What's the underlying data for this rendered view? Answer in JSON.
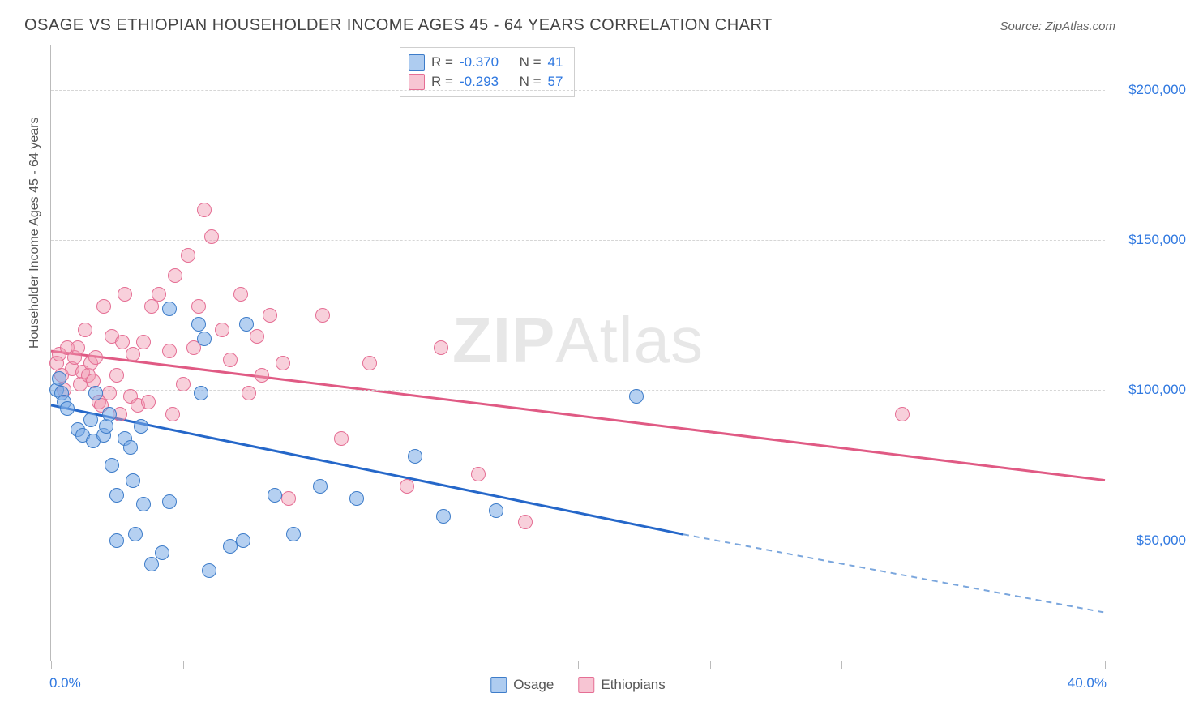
{
  "title": "OSAGE VS ETHIOPIAN HOUSEHOLDER INCOME AGES 45 - 64 YEARS CORRELATION CHART",
  "source": "Source: ZipAtlas.com",
  "yaxis_title": "Householder Income Ages 45 - 64 years",
  "watermark_zip": "ZIP",
  "watermark_atlas": "Atlas",
  "chart": {
    "type": "scatter",
    "xlim": [
      0,
      40
    ],
    "ylim": [
      10000,
      215000
    ],
    "xlabels": {
      "min": "0.0%",
      "max": "40.0%"
    },
    "xtick_positions": [
      0,
      5,
      10,
      15,
      20,
      25,
      30,
      35,
      40
    ],
    "yticks": [
      50000,
      100000,
      150000,
      200000
    ],
    "yticklabels": [
      "$50,000",
      "$100,000",
      "$150,000",
      "$200,000"
    ],
    "grid_color": "#d6d6d6",
    "axis_color": "#bbbbbb",
    "bg": "#ffffff",
    "tick_font_color": "#2f78e0",
    "tick_fontsize": 17,
    "marker_size": 18,
    "series": {
      "osage": {
        "label": "Osage",
        "color_fill": "rgba(120,170,230,0.55)",
        "color_stroke": "#3d7cc9",
        "R": "-0.370",
        "N": "41",
        "points": [
          [
            0.2,
            100000
          ],
          [
            0.3,
            104000
          ],
          [
            0.4,
            99000
          ],
          [
            0.5,
            96000
          ],
          [
            0.6,
            94000
          ],
          [
            1.0,
            87000
          ],
          [
            1.2,
            85000
          ],
          [
            1.5,
            90000
          ],
          [
            1.6,
            83000
          ],
          [
            1.7,
            99000
          ],
          [
            2.0,
            85000
          ],
          [
            2.1,
            88000
          ],
          [
            2.2,
            92000
          ],
          [
            2.3,
            75000
          ],
          [
            2.5,
            65000
          ],
          [
            2.5,
            50000
          ],
          [
            2.8,
            84000
          ],
          [
            3.0,
            81000
          ],
          [
            3.1,
            70000
          ],
          [
            3.2,
            52000
          ],
          [
            3.4,
            88000
          ],
          [
            3.5,
            62000
          ],
          [
            3.8,
            42000
          ],
          [
            4.2,
            46000
          ],
          [
            4.5,
            63000
          ],
          [
            4.5,
            127000
          ],
          [
            5.6,
            122000
          ],
          [
            5.7,
            99000
          ],
          [
            5.8,
            117000
          ],
          [
            6.0,
            40000
          ],
          [
            6.8,
            48000
          ],
          [
            7.3,
            50000
          ],
          [
            7.4,
            122000
          ],
          [
            8.5,
            65000
          ],
          [
            9.2,
            52000
          ],
          [
            10.2,
            68000
          ],
          [
            11.6,
            64000
          ],
          [
            13.8,
            78000
          ],
          [
            14.9,
            58000
          ],
          [
            16.9,
            60000
          ],
          [
            22.2,
            98000
          ]
        ],
        "trend": {
          "x1": 0,
          "y1": 95000,
          "x2": 24,
          "y2": 52000,
          "x2ext": 40,
          "y2ext": 26000,
          "solid_color": "#2567c9",
          "dash_color": "#7aa6dd",
          "width": 3
        }
      },
      "ethiopian": {
        "label": "Ethiopians",
        "color_fill": "rgba(240,150,175,0.45)",
        "color_stroke": "#e56e94",
        "R": "-0.293",
        "N": "57",
        "points": [
          [
            0.2,
            109000
          ],
          [
            0.3,
            112000
          ],
          [
            0.4,
            105000
          ],
          [
            0.5,
            100000
          ],
          [
            0.6,
            114000
          ],
          [
            0.8,
            107000
          ],
          [
            0.9,
            111000
          ],
          [
            1.0,
            114000
          ],
          [
            1.1,
            102000
          ],
          [
            1.2,
            106000
          ],
          [
            1.3,
            120000
          ],
          [
            1.4,
            105000
          ],
          [
            1.5,
            109000
          ],
          [
            1.6,
            103000
          ],
          [
            1.7,
            111000
          ],
          [
            1.8,
            96000
          ],
          [
            1.9,
            95000
          ],
          [
            2.0,
            128000
          ],
          [
            2.2,
            99000
          ],
          [
            2.3,
            118000
          ],
          [
            2.5,
            105000
          ],
          [
            2.6,
            92000
          ],
          [
            2.7,
            116000
          ],
          [
            2.8,
            132000
          ],
          [
            3.0,
            98000
          ],
          [
            3.1,
            112000
          ],
          [
            3.3,
            95000
          ],
          [
            3.5,
            116000
          ],
          [
            3.7,
            96000
          ],
          [
            3.8,
            128000
          ],
          [
            4.1,
            132000
          ],
          [
            4.5,
            113000
          ],
          [
            4.6,
            92000
          ],
          [
            4.7,
            138000
          ],
          [
            5.0,
            102000
          ],
          [
            5.2,
            145000
          ],
          [
            5.4,
            114000
          ],
          [
            5.6,
            128000
          ],
          [
            5.8,
            160000
          ],
          [
            6.1,
            151000
          ],
          [
            6.5,
            120000
          ],
          [
            6.8,
            110000
          ],
          [
            7.2,
            132000
          ],
          [
            7.5,
            99000
          ],
          [
            7.8,
            118000
          ],
          [
            8.0,
            105000
          ],
          [
            8.3,
            125000
          ],
          [
            8.8,
            109000
          ],
          [
            9.0,
            64000
          ],
          [
            10.3,
            125000
          ],
          [
            11.0,
            84000
          ],
          [
            12.1,
            109000
          ],
          [
            13.5,
            68000
          ],
          [
            14.8,
            114000
          ],
          [
            16.2,
            72000
          ],
          [
            18.0,
            56000
          ],
          [
            32.3,
            92000
          ]
        ],
        "trend": {
          "x1": 0,
          "y1": 113000,
          "x2": 40,
          "y2": 70000,
          "solid_color": "#e05a84",
          "width": 3
        }
      }
    }
  },
  "legend_top": {
    "rlabel": "R =",
    "nlabel": "N ="
  },
  "legend_bottom": [
    "Osage",
    "Ethiopians"
  ]
}
